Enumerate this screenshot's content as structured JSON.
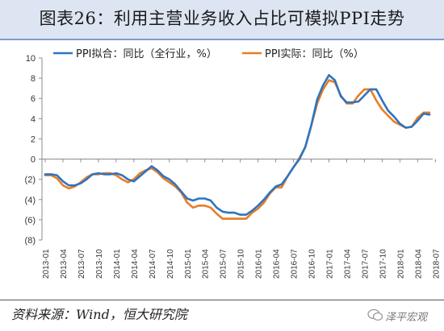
{
  "header": {
    "title": "图表26：利用主营业务收入占比可模拟PPI走势"
  },
  "footer": {
    "source": "资料来源：Wind，恒大研究院",
    "watermark": "泽平宏观"
  },
  "chart_data": {
    "type": "line",
    "ylim": [
      -8,
      10
    ],
    "y_ticks": [
      10,
      8,
      6,
      4,
      2,
      0,
      -2,
      -4,
      -6,
      -8
    ],
    "y_tick_labels": [
      "10",
      "8",
      "6",
      "4",
      "2",
      "0",
      "(2)",
      "(4)",
      "(6)",
      "(8)"
    ],
    "x_tick_labels": [
      "2013-01",
      "2013-04",
      "2013-07",
      "2013-10",
      "2014-01",
      "2014-04",
      "2014-07",
      "2014-10",
      "2015-01",
      "2015-04",
      "2015-07",
      "2015-10",
      "2016-01",
      "2016-04",
      "2016-07",
      "2016-10",
      "2017-01",
      "2017-04",
      "2017-07",
      "2017-10",
      "2018-01",
      "2018-04",
      "2018-07"
    ],
    "grid": false,
    "legend_position": "top-left",
    "series": [
      {
        "name": "PPI拟合：同比（全行业，%）",
        "color": "#2e74c0",
        "values": [
          -1.5,
          -1.5,
          -1.6,
          -2.2,
          -2.6,
          -2.6,
          -2.4,
          -2.0,
          -1.5,
          -1.4,
          -1.5,
          -1.5,
          -1.4,
          -1.6,
          -2.0,
          -2.2,
          -1.7,
          -1.2,
          -0.7,
          -1.1,
          -1.7,
          -2.0,
          -2.5,
          -3.2,
          -3.9,
          -4.1,
          -3.9,
          -3.9,
          -4.1,
          -4.8,
          -5.2,
          -5.3,
          -5.3,
          -5.5,
          -5.5,
          -5.1,
          -4.6,
          -4.0,
          -3.3,
          -2.7,
          -2.5,
          -1.7,
          -0.8,
          0.0,
          1.2,
          3.3,
          5.9,
          7.3,
          8.3,
          7.8,
          6.2,
          5.6,
          5.6,
          5.7,
          6.3,
          6.9,
          6.9,
          5.8,
          4.8,
          4.2,
          3.5,
          3.1,
          3.2,
          3.8,
          4.5,
          4.4
        ]
      },
      {
        "name": "PPI实际：同比（%）",
        "color": "#e87d23",
        "values": [
          -1.6,
          -1.6,
          -1.9,
          -2.6,
          -2.9,
          -2.7,
          -2.3,
          -1.8,
          -1.5,
          -1.5,
          -1.4,
          -1.4,
          -1.6,
          -2.0,
          -2.3,
          -2.0,
          -1.4,
          -1.1,
          -0.9,
          -1.3,
          -1.9,
          -2.3,
          -2.7,
          -3.3,
          -4.3,
          -4.8,
          -4.6,
          -4.6,
          -4.8,
          -5.4,
          -5.9,
          -5.9,
          -5.9,
          -5.9,
          -5.9,
          -5.3,
          -4.9,
          -4.3,
          -3.4,
          -2.8,
          -2.8,
          -1.7,
          -0.8,
          0.1,
          1.2,
          3.3,
          5.5,
          6.9,
          7.8,
          7.6,
          6.3,
          5.5,
          5.5,
          6.3,
          6.9,
          6.9,
          5.8,
          4.9,
          4.3,
          3.7,
          3.4,
          3.1,
          3.2,
          4.1,
          4.6,
          4.6
        ]
      }
    ]
  }
}
